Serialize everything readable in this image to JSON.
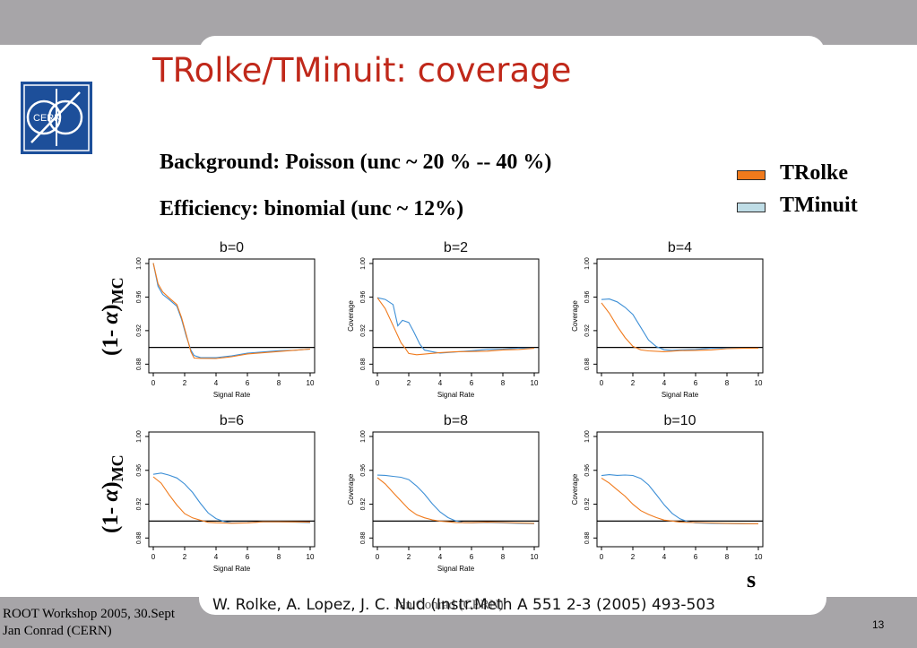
{
  "slide": {
    "title": "TRolke/TMinuit: coverage",
    "info_lines": [
      "Background: Poisson  (unc ~ 20 % -- 40 %)",
      "Efficiency: binomial (unc ~ 12%)"
    ],
    "legend": [
      {
        "label": "TRolke",
        "color": "#f07a1c"
      },
      {
        "label": "TMinuit",
        "color": "#bfdde6"
      }
    ],
    "ylabel_prefix": "(1- ",
    "ylabel_alpha": "α",
    "ylabel_suffix": ")",
    "ylabel_sub": "MC",
    "s_label": "s",
    "reference": "W. Rolke, A. Lopez, J. C. Nud (Instr.Meth A 551 2-3 (2005) 493-503",
    "reference_overlap": "Jan Conrad (CERN)",
    "footer_line1": "ROOT Workshop 2005, 30.Sept",
    "footer_line2": "Jan Conrad (CERN)",
    "page_number": "13",
    "logo_text": "CERN",
    "colors": {
      "accent_title": "#c0281a",
      "band": "#a7a5a8",
      "logo": "#1d4f9a",
      "trolke": "#f07a1c",
      "tminuit": "#3d8fd6"
    }
  },
  "chart_data": [
    {
      "type": "line",
      "title": "b=0",
      "xlabel": "Signal Rate",
      "ylabel": "",
      "xlim": [
        0,
        10
      ],
      "ylim": [
        0.875,
        1.0
      ],
      "reference_line": 0.9,
      "xticks": [
        0,
        2,
        4,
        6,
        8,
        10
      ],
      "yticks": [
        0.88,
        0.92,
        0.96,
        1.0
      ],
      "series": [
        {
          "name": "TRolke",
          "x": [
            0,
            0.3,
            0.6,
            1.0,
            1.5,
            1.8,
            2.1,
            2.4,
            2.6,
            3.0,
            4,
            5,
            6,
            7,
            8,
            9,
            10
          ],
          "y": [
            1.0,
            0.975,
            0.965,
            0.958,
            0.95,
            0.935,
            0.915,
            0.895,
            0.888,
            0.888,
            0.888,
            0.89,
            0.893,
            0.894,
            0.895,
            0.896,
            0.897
          ]
        },
        {
          "name": "TMinuit",
          "x": [
            0,
            0.3,
            0.6,
            1.0,
            1.5,
            1.8,
            2.1,
            2.4,
            2.6,
            3.0,
            4,
            5,
            6,
            7,
            8,
            9,
            10
          ],
          "y": [
            1.0,
            0.972,
            0.962,
            0.956,
            0.948,
            0.933,
            0.913,
            0.897,
            0.891,
            0.889,
            0.889,
            0.891,
            0.894,
            0.895,
            0.896,
            0.896,
            0.897
          ]
        }
      ]
    },
    {
      "type": "line",
      "title": "b=2",
      "xlabel": "Signal Rate",
      "ylabel": "Coverage",
      "xlim": [
        0,
        10
      ],
      "ylim": [
        0.875,
        1.0
      ],
      "reference_line": 0.9,
      "xticks": [
        0,
        2,
        4,
        6,
        8,
        10
      ],
      "yticks": [
        0.88,
        0.92,
        0.96,
        1.0
      ],
      "series": [
        {
          "name": "TRolke",
          "x": [
            0,
            0.5,
            1.0,
            1.5,
            1.8,
            2.0,
            2.5,
            3,
            4,
            5,
            6,
            7,
            8,
            9,
            10
          ],
          "y": [
            0.958,
            0.945,
            0.925,
            0.905,
            0.898,
            0.893,
            0.892,
            0.893,
            0.895,
            0.896,
            0.896,
            0.896,
            0.897,
            0.897,
            0.898
          ]
        },
        {
          "name": "TMinuit",
          "x": [
            0,
            0.5,
            1.0,
            1.3,
            1.6,
            2.0,
            2.3,
            2.7,
            3.0,
            3.5,
            4,
            5,
            6,
            7,
            8,
            9,
            10
          ],
          "y": [
            0.958,
            0.956,
            0.95,
            0.925,
            0.932,
            0.93,
            0.92,
            0.905,
            0.898,
            0.896,
            0.894,
            0.895,
            0.896,
            0.897,
            0.897,
            0.898,
            0.898
          ]
        }
      ]
    },
    {
      "type": "line",
      "title": "b=4",
      "xlabel": "Signal Rate",
      "ylabel": "Coverage",
      "xlim": [
        0,
        10
      ],
      "ylim": [
        0.875,
        1.0
      ],
      "reference_line": 0.9,
      "xticks": [
        0,
        2,
        4,
        6,
        8,
        10
      ],
      "yticks": [
        0.88,
        0.92,
        0.96,
        1.0
      ],
      "series": [
        {
          "name": "TRolke",
          "x": [
            0,
            0.5,
            1.0,
            1.5,
            2.0,
            2.5,
            3.0,
            4,
            5,
            6,
            7,
            8,
            9,
            10
          ],
          "y": [
            0.952,
            0.94,
            0.925,
            0.912,
            0.902,
            0.898,
            0.897,
            0.896,
            0.897,
            0.897,
            0.897,
            0.898,
            0.898,
            0.898
          ]
        },
        {
          "name": "TMinuit",
          "x": [
            0,
            0.5,
            1.0,
            1.5,
            2.0,
            2.5,
            3.0,
            3.5,
            4.0,
            4.5,
            5,
            6,
            7,
            8,
            9,
            10
          ],
          "y": [
            0.956,
            0.957,
            0.954,
            0.948,
            0.94,
            0.925,
            0.91,
            0.902,
            0.898,
            0.897,
            0.897,
            0.897,
            0.898,
            0.898,
            0.898,
            0.898
          ]
        }
      ]
    },
    {
      "type": "line",
      "title": "b=6",
      "xlabel": "Signal Rate",
      "ylabel": "",
      "xlim": [
        0,
        10
      ],
      "ylim": [
        0.875,
        1.0
      ],
      "reference_line": 0.9,
      "xticks": [
        0,
        2,
        4,
        6,
        8,
        10
      ],
      "yticks": [
        0.88,
        0.92,
        0.96,
        1.0
      ],
      "series": [
        {
          "name": "TRolke",
          "x": [
            0,
            0.5,
            1.0,
            1.5,
            2.0,
            2.5,
            3.0,
            3.5,
            4,
            5,
            6,
            7,
            8,
            9,
            10
          ],
          "y": [
            0.952,
            0.945,
            0.932,
            0.92,
            0.91,
            0.905,
            0.902,
            0.899,
            0.898,
            0.897,
            0.897,
            0.898,
            0.898,
            0.898,
            0.898
          ]
        },
        {
          "name": "TMinuit",
          "x": [
            0,
            0.5,
            1.0,
            1.5,
            2.0,
            2.5,
            3.0,
            3.5,
            4.0,
            4.5,
            5.0,
            6,
            7,
            8,
            9,
            10
          ],
          "y": [
            0.955,
            0.957,
            0.955,
            0.952,
            0.945,
            0.935,
            0.922,
            0.91,
            0.903,
            0.899,
            0.897,
            0.897,
            0.898,
            0.898,
            0.898,
            0.898
          ]
        }
      ]
    },
    {
      "type": "line",
      "title": "b=8",
      "xlabel": "Signal Rate",
      "ylabel": "Coverage",
      "xlim": [
        0,
        10
      ],
      "ylim": [
        0.875,
        1.0
      ],
      "reference_line": 0.9,
      "xticks": [
        0,
        2,
        4,
        6,
        8,
        10
      ],
      "yticks": [
        0.88,
        0.92,
        0.96,
        1.0
      ],
      "series": [
        {
          "name": "TRolke",
          "x": [
            0,
            0.5,
            1.0,
            1.5,
            2.0,
            2.5,
            3.0,
            3.5,
            4.0,
            4.5,
            5,
            6,
            7,
            8,
            9,
            10
          ],
          "y": [
            0.952,
            0.945,
            0.935,
            0.925,
            0.915,
            0.908,
            0.904,
            0.901,
            0.899,
            0.898,
            0.897,
            0.897,
            0.898,
            0.898,
            0.898,
            0.898
          ]
        },
        {
          "name": "TMinuit",
          "x": [
            0,
            0.5,
            1.0,
            1.5,
            2.0,
            2.5,
            3.0,
            3.5,
            4.0,
            4.5,
            5.0,
            5.5,
            6,
            7,
            8,
            9,
            10
          ],
          "y": [
            0.955,
            0.955,
            0.954,
            0.953,
            0.95,
            0.942,
            0.932,
            0.92,
            0.91,
            0.903,
            0.899,
            0.897,
            0.897,
            0.898,
            0.898,
            0.898,
            0.898
          ]
        }
      ]
    },
    {
      "type": "line",
      "title": "b=10",
      "xlabel": "",
      "ylabel": "Coverage",
      "xlim": [
        0,
        10
      ],
      "ylim": [
        0.875,
        1.0
      ],
      "reference_line": 0.9,
      "xticks": [
        0,
        2,
        4,
        6,
        8,
        10
      ],
      "yticks": [
        0.88,
        0.92,
        0.96,
        1.0
      ],
      "series": [
        {
          "name": "TRolke",
          "x": [
            0,
            0.5,
            1.0,
            1.5,
            2.0,
            2.5,
            3.0,
            3.5,
            4.0,
            4.5,
            5,
            6,
            7,
            8,
            9,
            10
          ],
          "y": [
            0.952,
            0.946,
            0.938,
            0.93,
            0.92,
            0.912,
            0.907,
            0.903,
            0.9,
            0.899,
            0.898,
            0.898,
            0.898,
            0.898,
            0.898,
            0.898
          ]
        },
        {
          "name": "TMinuit",
          "x": [
            0,
            0.5,
            1.0,
            1.5,
            2.0,
            2.5,
            3.0,
            3.5,
            4.0,
            4.5,
            5.0,
            5.5,
            6,
            7,
            8,
            9,
            10
          ],
          "y": [
            0.955,
            0.956,
            0.955,
            0.955,
            0.954,
            0.95,
            0.942,
            0.93,
            0.918,
            0.908,
            0.902,
            0.899,
            0.898,
            0.898,
            0.898,
            0.898,
            0.898
          ]
        }
      ]
    }
  ]
}
